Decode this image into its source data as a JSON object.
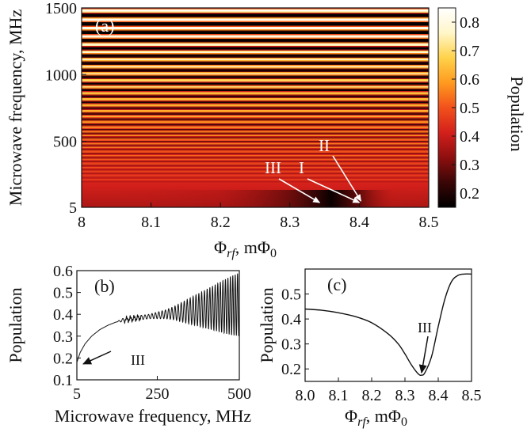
{
  "chart_data": [
    {
      "type": "heatmap",
      "panel_label": "(a)",
      "xlabel_main": "Φ",
      "xlabel_sub": "rf",
      "xlabel_tail": ", mΦ",
      "xlabel_tail_sub": "0",
      "ylabel": "Microwave frequency, MHz",
      "xlim": [
        8.0,
        8.5
      ],
      "ylim": [
        5,
        1500
      ],
      "x_ticks": [
        "8",
        "8.1",
        "8.2",
        "8.3",
        "8.4",
        "8.5"
      ],
      "y_ticks": [
        "5",
        "500",
        "1000",
        "1500"
      ],
      "colorbar": {
        "label": "Population",
        "range": [
          0.15,
          0.85
        ],
        "ticks": [
          "0.2",
          "0.3",
          "0.4",
          "0.5",
          "0.6",
          "0.7",
          "0.8"
        ],
        "colors": [
          "#000000",
          "#3a0606",
          "#8e0f0f",
          "#d3201b",
          "#f2511b",
          "#ff9a1e",
          "#ffd24a",
          "#fff6c8",
          "#ffffff"
        ]
      },
      "annotations": [
        {
          "text": "III",
          "at": [
            8.345,
            5
          ]
        },
        {
          "text": "I",
          "at": [
            8.4,
            5
          ]
        },
        {
          "text": "II",
          "at": [
            8.4,
            5
          ]
        }
      ]
    },
    {
      "type": "line",
      "panel_label": "(b)",
      "xlabel": "Microwave frequency, MHz",
      "ylabel": "Population",
      "xlim": [
        5,
        500
      ],
      "ylim": [
        0.1,
        0.6
      ],
      "x_ticks": [
        "5",
        "250",
        "500"
      ],
      "y_ticks": [
        "0.1",
        "0.2",
        "0.3",
        "0.4",
        "0.5",
        "0.6"
      ],
      "annotation": {
        "text": "III",
        "at": [
          5,
          0.18
        ]
      },
      "x": [
        5,
        15,
        30,
        50,
        75,
        100,
        125,
        150,
        175,
        200,
        225,
        250,
        275,
        300,
        325,
        350,
        375,
        400,
        425,
        450,
        475,
        500
      ],
      "y": [
        0.18,
        0.225,
        0.265,
        0.3,
        0.33,
        0.35,
        0.365,
        0.375,
        0.38,
        0.385,
        0.39,
        0.395,
        0.4,
        0.405,
        0.41,
        0.415,
        0.42,
        0.425,
        0.43,
        0.435,
        0.44,
        0.445
      ],
      "oscillation_amplitude": [
        0,
        0,
        0,
        0,
        0,
        0,
        0,
        0.01,
        0.01,
        0.01,
        0.01,
        0.015,
        0.02,
        0.03,
        0.045,
        0.06,
        0.075,
        0.09,
        0.105,
        0.12,
        0.135,
        0.145
      ]
    },
    {
      "type": "line",
      "panel_label": "(c)",
      "xlabel_main": "Φ",
      "xlabel_sub": "rf",
      "xlabel_tail": ", mΦ",
      "xlabel_tail_sub": "0",
      "ylabel": "Population",
      "xlim": [
        8.0,
        8.5
      ],
      "ylim": [
        0.15,
        0.6
      ],
      "x_ticks": [
        "8.0",
        "8.1",
        "8.2",
        "8.3",
        "8.4",
        "8.5"
      ],
      "y_ticks": [
        "0.2",
        "0.3",
        "0.4",
        "0.5"
      ],
      "annotation": {
        "text": "III",
        "at": [
          8.35,
          0.175
        ]
      },
      "x": [
        8.0,
        8.05,
        8.1,
        8.15,
        8.2,
        8.25,
        8.28,
        8.3,
        8.32,
        8.34,
        8.35,
        8.36,
        8.38,
        8.4,
        8.42,
        8.44,
        8.46,
        8.48,
        8.5
      ],
      "y": [
        0.44,
        0.435,
        0.425,
        0.41,
        0.385,
        0.34,
        0.3,
        0.26,
        0.215,
        0.18,
        0.175,
        0.185,
        0.25,
        0.37,
        0.48,
        0.55,
        0.575,
        0.58,
        0.58
      ]
    }
  ]
}
